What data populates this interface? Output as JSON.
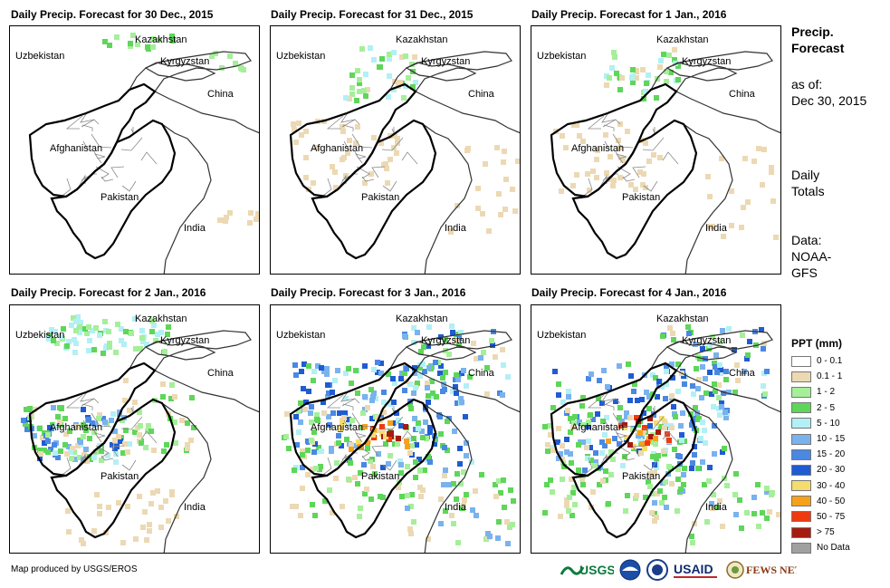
{
  "panels": [
    {
      "title": "Daily Precip. Forecast for 30 Dec., 2015",
      "intensity": 0
    },
    {
      "title": "Daily Precip. Forecast for 31 Dec., 2015",
      "intensity": 1
    },
    {
      "title": "Daily Precip. Forecast for 1 Jan., 2016",
      "intensity": 1
    },
    {
      "title": "Daily Precip. Forecast for 2 Jan., 2016",
      "intensity": 2
    },
    {
      "title": "Daily Precip. Forecast for 3 Jan., 2016",
      "intensity": 3
    },
    {
      "title": "Daily Precip. Forecast for 4 Jan., 2016",
      "intensity": 3
    }
  ],
  "map_labels": {
    "kazakhstan": "Kazakhstan",
    "uzbekistan": "Uzbekistan",
    "kyrgyzstan": "Kyrgyzstan",
    "china": "China",
    "afghanistan": "Afghanistan",
    "pakistan": "Pakistan",
    "india": "India"
  },
  "side": {
    "title_line1": "Precip.",
    "title_line2": "Forecast",
    "asof_line1": "as of:",
    "asof_line2": "Dec 30, 2015",
    "totals_line1": "Daily",
    "totals_line2": "Totals",
    "data_line1": "Data:",
    "data_line2": "NOAA-",
    "data_line3": "GFS"
  },
  "legend": {
    "title": "PPT (mm)",
    "items": [
      {
        "label": "0 - 0.1",
        "color": "#ffffff"
      },
      {
        "label": "0.1 - 1",
        "color": "#ecd9b3"
      },
      {
        "label": "1 - 2",
        "color": "#a6ef9a"
      },
      {
        "label": "2 - 5",
        "color": "#5fd65a"
      },
      {
        "label": "5 - 10",
        "color": "#b2f0f5"
      },
      {
        "label": "10 - 15",
        "color": "#7ab2ee"
      },
      {
        "label": "15 - 20",
        "color": "#4a88e2"
      },
      {
        "label": "20 - 30",
        "color": "#1f5cd2"
      },
      {
        "label": "30 - 40",
        "color": "#f5dc6e"
      },
      {
        "label": "40 - 50",
        "color": "#f5a21a"
      },
      {
        "label": "50 - 75",
        "color": "#ef3a10"
      },
      {
        "label": "> 75",
        "color": "#a51b12"
      },
      {
        "label": "No Data",
        "color": "#a0a0a0"
      }
    ]
  },
  "credit": "Map produced by USGS/EROS",
  "logos": {
    "usgs": "USGS",
    "usaid": "USAID",
    "fews": "FEWS NET"
  }
}
